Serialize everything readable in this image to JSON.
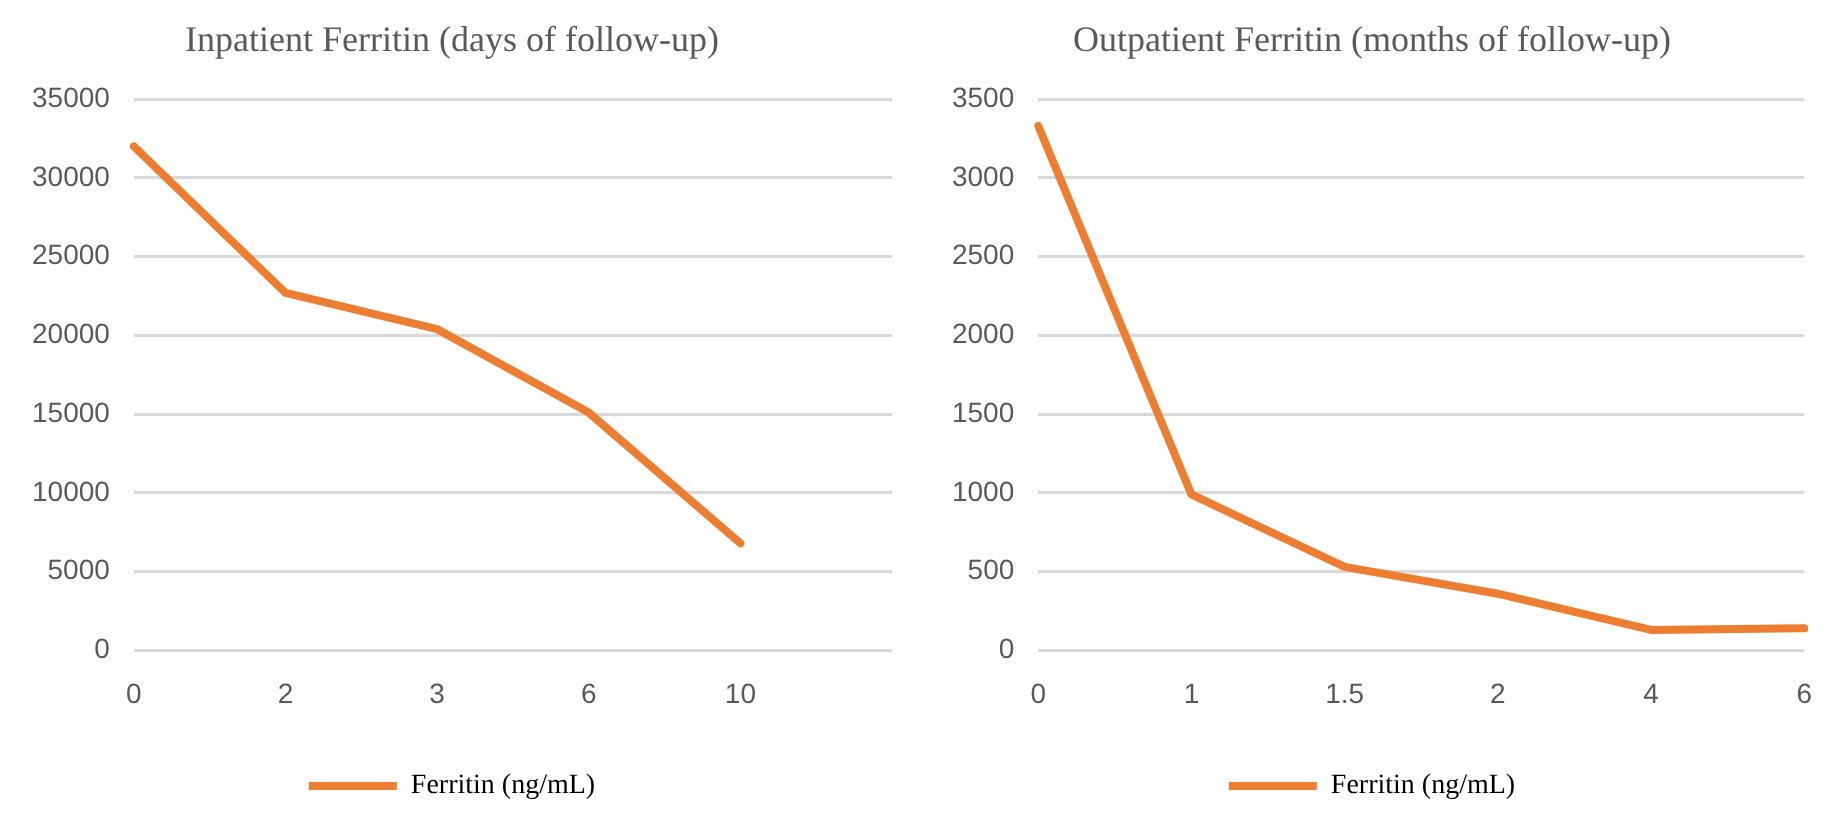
{
  "chart_data": [
    {
      "type": "line",
      "title": "Inpatient Ferritin (days of follow-up)",
      "categories": [
        "0",
        "2",
        "3",
        "6",
        "10",
        null
      ],
      "series": [
        {
          "name": "Ferritin (ng/mL)",
          "color": "#ed7d31",
          "values": [
            32000,
            22700,
            20400,
            15100,
            6800,
            null
          ]
        }
      ],
      "ylim": [
        0,
        35000
      ],
      "yticks": [
        0,
        5000,
        10000,
        15000,
        20000,
        25000,
        30000,
        35000
      ],
      "grid": "y",
      "legend": "bottom",
      "marker": "none",
      "line_style": "solid"
    },
    {
      "type": "line",
      "title": "Outpatient Ferritin (months of follow-up)",
      "categories": [
        "0",
        "1",
        "1.5",
        "2",
        "4",
        "6"
      ],
      "series": [
        {
          "name": "Ferritin (ng/mL)",
          "color": "#ed7d31",
          "values": [
            3330,
            990,
            530,
            360,
            130,
            140
          ]
        }
      ],
      "ylim": [
        0,
        3500
      ],
      "yticks": [
        0,
        500,
        1000,
        1500,
        2000,
        2500,
        3000,
        3500
      ],
      "grid": "y",
      "legend": "bottom",
      "marker": "none",
      "line_style": "solid"
    }
  ]
}
